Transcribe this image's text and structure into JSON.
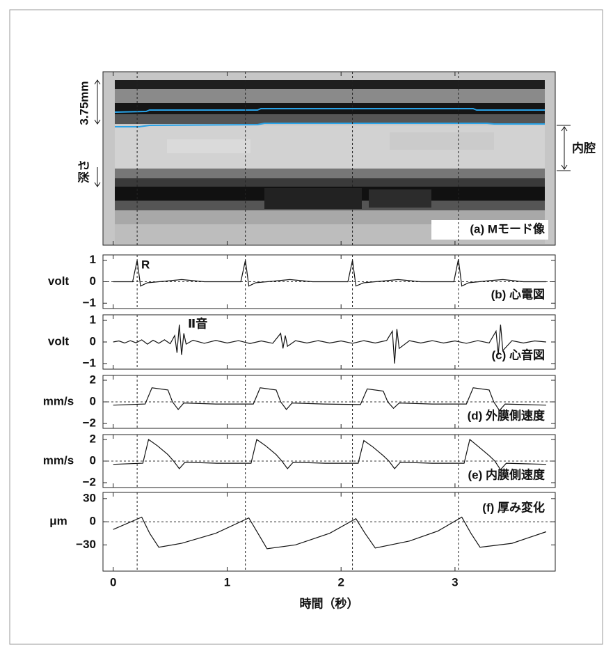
{
  "chart_data": [
    {
      "type": "image",
      "title": "(a) Mモード像",
      "depth_label": "3.75mm",
      "axis_label": "深さ",
      "region_label": "内腔",
      "markers": [
        0.21,
        1.16,
        2.1,
        3.03
      ],
      "xlim": [
        -0.09,
        3.88
      ]
    },
    {
      "type": "line",
      "title": "(b) 心電図",
      "ylabel": "volt",
      "annotation": "R",
      "color": "#111",
      "x": [
        0,
        0.17,
        0.21,
        0.24,
        0.3,
        0.5,
        0.6,
        0.8,
        1.12,
        1.16,
        1.19,
        1.25,
        1.45,
        1.55,
        1.75,
        2.06,
        2.1,
        2.13,
        2.2,
        2.4,
        2.5,
        2.7,
        2.99,
        3.03,
        3.06,
        3.12,
        3.3,
        3.42,
        3.6,
        3.8
      ],
      "values": [
        0,
        0,
        1,
        -0.2,
        -0.05,
        0.05,
        0.1,
        0,
        0,
        1,
        -0.2,
        -0.05,
        0.05,
        0.1,
        0,
        0,
        1,
        -0.2,
        -0.05,
        0.05,
        0.1,
        0,
        0,
        1.05,
        -0.2,
        -0.05,
        0.05,
        0.1,
        0,
        0
      ],
      "xlim": [
        -0.09,
        3.88
      ],
      "ylim": [
        -1.25,
        1.25
      ],
      "yticks": [
        1,
        0,
        {
          "value": -1,
          "label": "−1"
        }
      ],
      "markers": [
        0.21,
        1.16,
        2.1,
        3.03
      ],
      "zero_line": true
    },
    {
      "type": "line",
      "title": "(c) 心音図",
      "ylabel": "volt",
      "annotation": "Ⅱ音",
      "color": "#111",
      "x": [
        0,
        0.05,
        0.1,
        0.15,
        0.2,
        0.25,
        0.3,
        0.35,
        0.4,
        0.45,
        0.5,
        0.54,
        0.56,
        0.58,
        0.6,
        0.62,
        0.64,
        0.7,
        0.8,
        0.9,
        1.0,
        1.1,
        1.2,
        1.3,
        1.4,
        1.47,
        1.49,
        1.51,
        1.53,
        1.6,
        1.7,
        1.8,
        1.9,
        2.0,
        2.1,
        2.2,
        2.3,
        2.4,
        2.45,
        2.47,
        2.49,
        2.51,
        2.6,
        2.7,
        2.8,
        2.9,
        3.0,
        3.1,
        3.2,
        3.3,
        3.36,
        3.38,
        3.4,
        3.42,
        3.5,
        3.6,
        3.7,
        3.8
      ],
      "values": [
        0,
        0.05,
        -0.05,
        0.06,
        -0.04,
        0.1,
        -0.1,
        0.08,
        -0.06,
        0.1,
        -0.08,
        0.3,
        -0.5,
        0.8,
        -0.6,
        0.4,
        -0.1,
        0.08,
        -0.06,
        0.07,
        -0.05,
        0.06,
        -0.07,
        0.05,
        -0.06,
        0.4,
        -0.3,
        0.3,
        -0.2,
        0.06,
        -0.05,
        0.06,
        -0.05,
        0.05,
        -0.06,
        0.06,
        -0.05,
        0.07,
        0.5,
        -1.0,
        0.6,
        -0.3,
        0.06,
        -0.05,
        0.06,
        -0.05,
        0.05,
        -0.06,
        0.06,
        -0.05,
        0.5,
        -0.6,
        0.8,
        -0.4,
        0.06,
        -0.05,
        0.05,
        0
      ],
      "xlim": [
        -0.09,
        3.88
      ],
      "ylim": [
        -1.26,
        1.26
      ],
      "yticks": [
        1,
        0,
        {
          "value": -1,
          "label": "−1"
        }
      ],
      "markers": [
        0.21,
        1.16,
        2.1,
        3.03
      ],
      "zero_line": false
    },
    {
      "type": "line",
      "title": "(d) 外膜側速度",
      "ylabel": "mm/s",
      "color": "#111",
      "x": [
        0,
        0.28,
        0.34,
        0.48,
        0.52,
        0.57,
        0.62,
        0.9,
        1.23,
        1.29,
        1.43,
        1.47,
        1.52,
        1.57,
        1.85,
        2.17,
        2.23,
        2.37,
        2.41,
        2.46,
        2.51,
        2.8,
        3.1,
        3.16,
        3.3,
        3.34,
        3.39,
        3.44,
        3.8
      ],
      "values": [
        -0.3,
        -0.2,
        1.3,
        1.1,
        0,
        -0.7,
        -0.1,
        -0.2,
        -0.2,
        1.3,
        1.1,
        0,
        -0.7,
        -0.1,
        -0.2,
        -0.25,
        1.2,
        1.0,
        0,
        -0.6,
        -0.1,
        -0.2,
        -0.2,
        1.3,
        1.1,
        0,
        -0.8,
        -0.2,
        -0.3
      ],
      "xlim": [
        -0.09,
        3.88
      ],
      "ylim": [
        -2.45,
        2.45
      ],
      "yticks": [
        2,
        0,
        {
          "value": -2,
          "label": "−2"
        }
      ],
      "markers": [
        0.21,
        1.16,
        2.1,
        3.03
      ],
      "zero_line": true
    },
    {
      "type": "line",
      "title": "(e) 内膜側速度",
      "ylabel": "mm/s",
      "color": "#111",
      "x": [
        0,
        0.26,
        0.31,
        0.39,
        0.48,
        0.53,
        0.58,
        0.63,
        0.91,
        1.21,
        1.26,
        1.34,
        1.43,
        1.48,
        1.53,
        1.58,
        1.86,
        2.15,
        2.2,
        2.28,
        2.37,
        2.42,
        2.47,
        2.52,
        2.8,
        3.08,
        3.13,
        3.21,
        3.3,
        3.35,
        3.4,
        3.45,
        3.8
      ],
      "values": [
        -0.3,
        -0.2,
        2.0,
        1.4,
        0.6,
        0,
        -0.7,
        -0.1,
        -0.2,
        -0.2,
        2.0,
        1.4,
        0.6,
        0,
        -0.7,
        -0.1,
        -0.2,
        -0.2,
        1.9,
        1.3,
        0.5,
        0,
        -0.7,
        -0.1,
        -0.2,
        -0.2,
        2.0,
        1.3,
        0.5,
        0,
        -0.8,
        -0.2,
        -0.3
      ],
      "xlim": [
        -0.09,
        3.88
      ],
      "ylim": [
        -2.45,
        2.45
      ],
      "yticks": [
        2,
        0,
        {
          "value": -2,
          "label": "−2"
        }
      ],
      "markers": [
        0.21,
        1.16,
        2.1,
        3.03
      ],
      "zero_line": true
    },
    {
      "type": "line",
      "title": "(f) 厚み変化",
      "ylabel": "μm",
      "xlabel": "時間（秒）",
      "color": "#111",
      "x": [
        0,
        0.25,
        0.32,
        0.4,
        0.6,
        0.9,
        1.19,
        1.27,
        1.35,
        1.6,
        1.9,
        2.13,
        2.21,
        2.3,
        2.6,
        2.85,
        3.06,
        3.14,
        3.22,
        3.5,
        3.8
      ],
      "values": [
        -10,
        6,
        -15,
        -33,
        -28,
        -15,
        5,
        -15,
        -35,
        -30,
        -15,
        4,
        -15,
        -34,
        -25,
        -12,
        6,
        -15,
        -33,
        -28,
        -13
      ],
      "xlim": [
        -0.09,
        3.88
      ],
      "ylim": [
        -64,
        38
      ],
      "xticks": [
        0,
        1,
        2,
        3
      ],
      "yticks": [
        30,
        0,
        {
          "value": -30,
          "label": "−30"
        }
      ],
      "markers": [
        0.21,
        1.16,
        2.1,
        3.03
      ],
      "zero_line": true
    }
  ]
}
